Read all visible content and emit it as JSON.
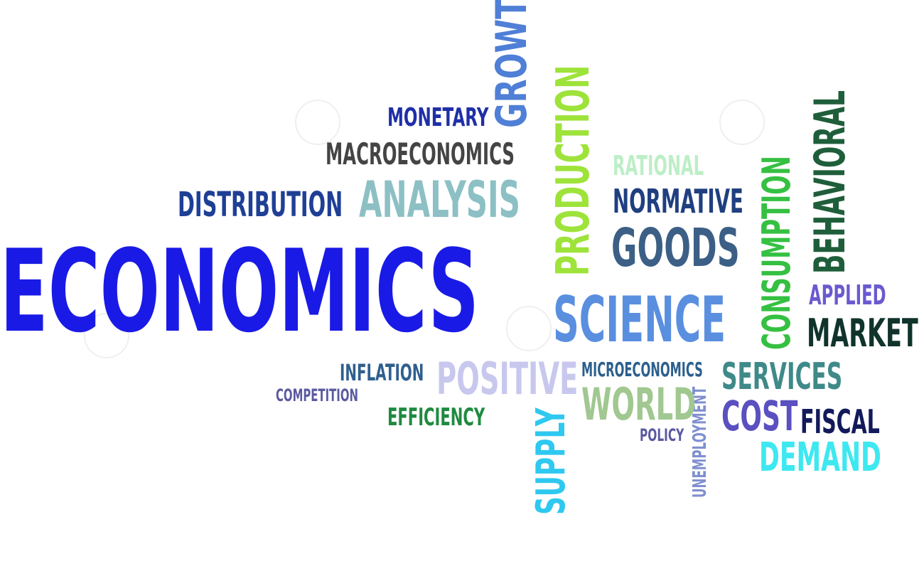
{
  "words": [
    {
      "key": "economics",
      "text": "ECONOMICS",
      "color": "#1a1ae6"
    },
    {
      "key": "growth",
      "text": "GROWTH",
      "color": "#4f7fd6"
    },
    {
      "key": "monetary",
      "text": "MONETARY",
      "color": "#1f2fa8"
    },
    {
      "key": "macroeconomics",
      "text": "MACROECONOMICS",
      "color": "#444444"
    },
    {
      "key": "distribution",
      "text": "DISTRIBUTION",
      "color": "#1f3f96"
    },
    {
      "key": "analysis",
      "text": "ANALYSIS",
      "color": "#8cc0c4"
    },
    {
      "key": "production",
      "text": "PRODUCTION",
      "color": "#9ee33a"
    },
    {
      "key": "rational",
      "text": "RATIONAL",
      "color": "#bdeec6"
    },
    {
      "key": "normative",
      "text": "NORMATIVE",
      "color": "#1f3f80"
    },
    {
      "key": "goods",
      "text": "GOODS",
      "color": "#3c5f86"
    },
    {
      "key": "consumption",
      "text": "CONSUMPTION",
      "color": "#35c042"
    },
    {
      "key": "behavioral",
      "text": "BEHAVIORAL",
      "color": "#1f5e3a"
    },
    {
      "key": "science",
      "text": "SCIENCE",
      "color": "#5a8fe0"
    },
    {
      "key": "applied",
      "text": "APPLIED",
      "color": "#6a5ad0"
    },
    {
      "key": "market",
      "text": "MARKET",
      "color": "#10342c"
    },
    {
      "key": "inflation",
      "text": "INFLATION",
      "color": "#2f5f8e"
    },
    {
      "key": "competition",
      "text": "COMPETITION",
      "color": "#5a5aa0"
    },
    {
      "key": "positive",
      "text": "POSITIVE",
      "color": "#c8c8ee"
    },
    {
      "key": "microeconomics",
      "text": "MICROECONOMICS",
      "color": "#2c5f8c"
    },
    {
      "key": "services",
      "text": "SERVICES",
      "color": "#3f8a88"
    },
    {
      "key": "efficiency",
      "text": "EFFICIENCY",
      "color": "#1f8a40"
    },
    {
      "key": "world",
      "text": "WORLD",
      "color": "#a0c890"
    },
    {
      "key": "unemployment",
      "text": "UNEMPLOYMENT",
      "color": "#7f8fd0"
    },
    {
      "key": "cost",
      "text": "COST",
      "color": "#5a50c0"
    },
    {
      "key": "fiscal",
      "text": "FISCAL",
      "color": "#121a5a"
    },
    {
      "key": "supply",
      "text": "SUPPLY",
      "color": "#2ec8f0"
    },
    {
      "key": "policy",
      "text": "POLICY",
      "color": "#5a5aa0"
    },
    {
      "key": "demand",
      "text": "DEMAND",
      "color": "#3ee8f0"
    }
  ]
}
